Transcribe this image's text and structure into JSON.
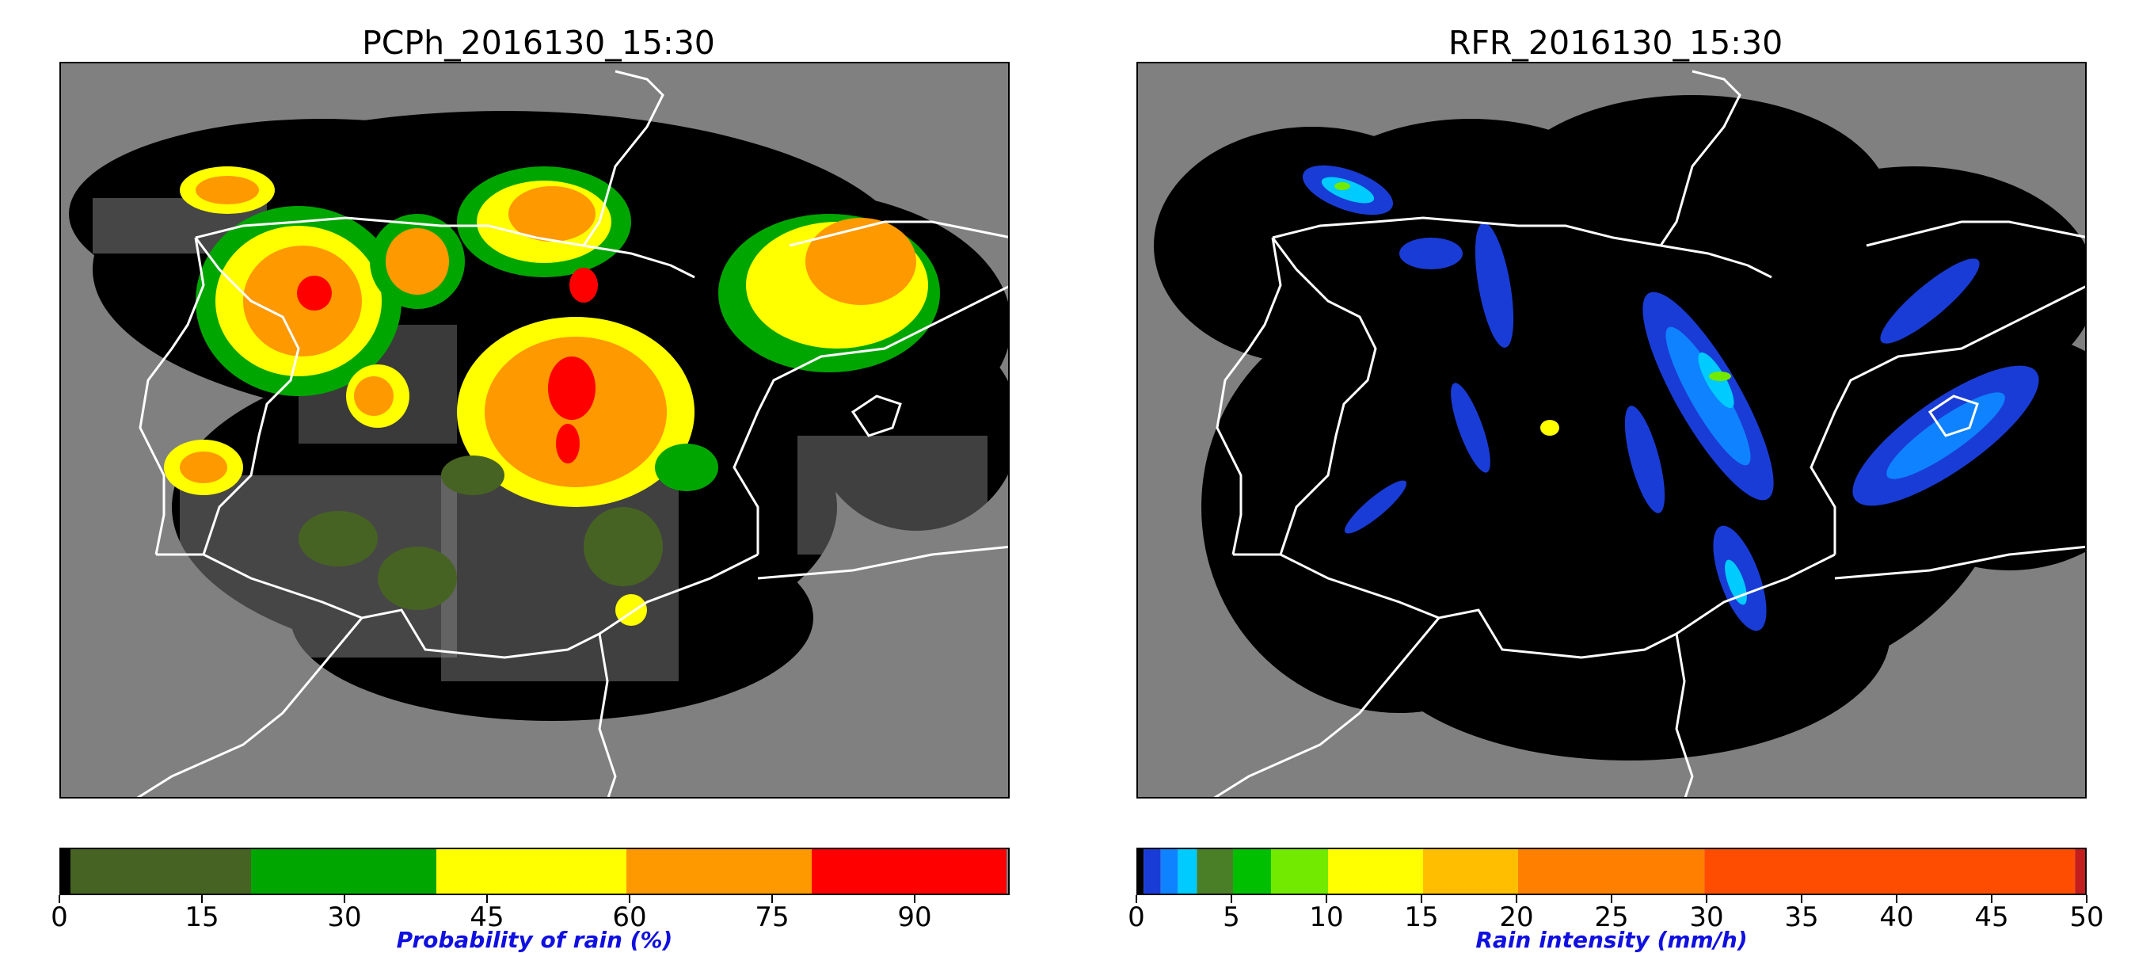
{
  "chart_data": [
    {
      "type": "heatmap",
      "title": "PCPh_2016130_15:30",
      "colorbar": {
        "label": "Probability of rain (%)",
        "range": [
          0,
          100
        ],
        "ticks": [
          0,
          15,
          30,
          45,
          60,
          75,
          90
        ],
        "tick_labels": [
          "0",
          "15",
          "30",
          "45",
          "60",
          "75",
          "90"
        ],
        "bins": [
          {
            "from": 0,
            "to": 1,
            "color": "#000000"
          },
          {
            "from": 1,
            "to": 20,
            "color": "#476323"
          },
          {
            "from": 20,
            "to": 39.5,
            "color": "#00a600"
          },
          {
            "from": 39.5,
            "to": 59.5,
            "color": "#ffff00"
          },
          {
            "from": 59.5,
            "to": 79,
            "color": "#ff9900"
          },
          {
            "from": 79,
            "to": 99.5,
            "color": "#ff0000"
          },
          {
            "from": 99.5,
            "to": 100,
            "color": "#808080"
          }
        ]
      },
      "colors": {
        "no_data": "#808080",
        "no_rain": "#000000",
        "coastline": "#ffffff"
      }
    },
    {
      "type": "heatmap",
      "title": "RFR_2016130_15:30",
      "colorbar": {
        "label": "Rain intensity (mm/h)",
        "range": [
          0,
          50
        ],
        "ticks": [
          0,
          5,
          10,
          15,
          20,
          25,
          30,
          35,
          40,
          45,
          50
        ],
        "tick_labels": [
          "0",
          "5",
          "10",
          "15",
          "20",
          "25",
          "30",
          "35",
          "40",
          "45",
          "50"
        ],
        "bins": [
          {
            "from": 0,
            "to": 0.3,
            "color": "#000000"
          },
          {
            "from": 0.3,
            "to": 1.2,
            "color": "#1a3cd6"
          },
          {
            "from": 1.2,
            "to": 2.1,
            "color": "#0f83ff"
          },
          {
            "from": 2.1,
            "to": 3.1,
            "color": "#00cbff"
          },
          {
            "from": 3.1,
            "to": 5,
            "color": "#4a7f27"
          },
          {
            "from": 5,
            "to": 7,
            "color": "#00bf00"
          },
          {
            "from": 7,
            "to": 10,
            "color": "#72ea00"
          },
          {
            "from": 10,
            "to": 15,
            "color": "#ffff00"
          },
          {
            "from": 15,
            "to": 20,
            "color": "#ffbf00"
          },
          {
            "from": 20,
            "to": 29.8,
            "color": "#ff8000"
          },
          {
            "from": 29.8,
            "to": 49.3,
            "color": "#ff4d00"
          },
          {
            "from": 49.3,
            "to": 50,
            "color": "#c41d1d"
          }
        ]
      },
      "colors": {
        "no_data": "#808080",
        "no_rain": "#000000",
        "coastline": "#ffffff"
      }
    }
  ]
}
